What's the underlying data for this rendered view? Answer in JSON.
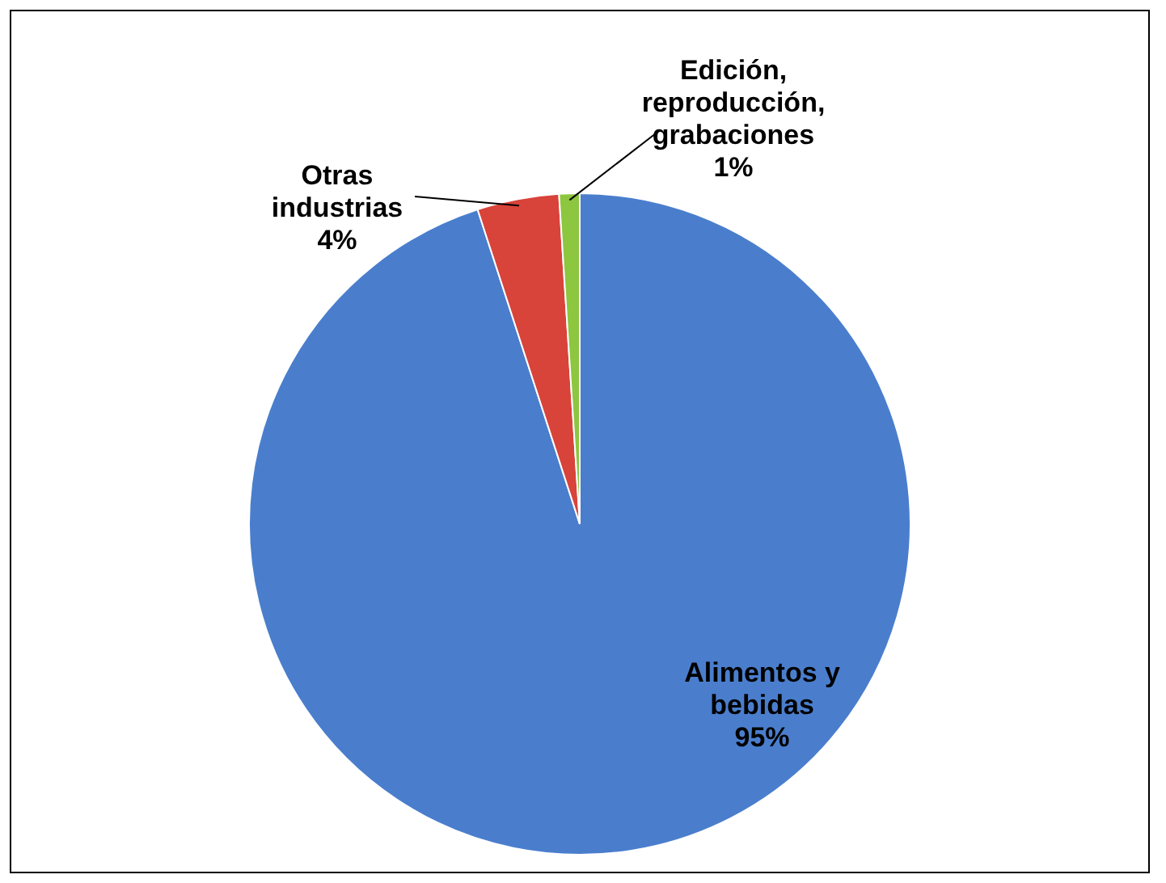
{
  "chart_data": {
    "type": "pie",
    "categories": [
      "Alimentos y bebidas",
      "Otras industrias",
      "Edición, reproducción, grabaciones"
    ],
    "values": [
      95,
      4,
      1
    ],
    "colors": [
      "#4a7ecd",
      "#d8433a",
      "#8dc63f"
    ],
    "data_labels": true,
    "value_labels": [
      "95%",
      "4%",
      "1%"
    ],
    "legend": false
  }
}
